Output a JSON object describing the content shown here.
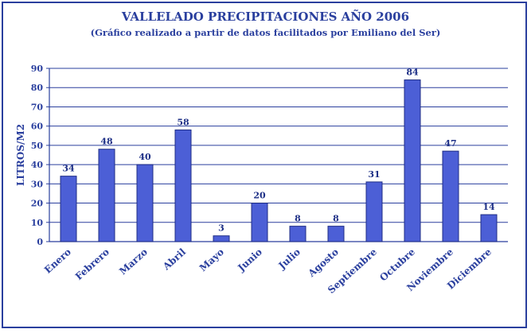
{
  "chart_data": {
    "type": "bar",
    "title": "VALLELADO PRECIPITACIONES AÑO 2006",
    "subtitle": "(Gráfico realizado a partir de datos facilitados por Emiliano del Ser)",
    "xlabel": "",
    "ylabel": "LITROS/M2",
    "ylim": [
      0,
      90
    ],
    "yticks": [
      0,
      10,
      20,
      30,
      40,
      50,
      60,
      70,
      80,
      90
    ],
    "grid": true,
    "categories": [
      "Enero",
      "Febrero",
      "Marzo",
      "Abril",
      "Mayo",
      "Junio",
      "Julio",
      "Agosto",
      "Septiembre",
      "Octubre",
      "Noviembre",
      "Diciembre"
    ],
    "values": [
      34,
      48,
      40,
      58,
      3,
      20,
      8,
      8,
      31,
      84,
      47,
      14
    ],
    "colors": {
      "bar_fill": "#4c5fd6",
      "bar_stroke": "#1f2d85",
      "text": "#2a3f9e",
      "grid": "#2a3f9e"
    }
  }
}
